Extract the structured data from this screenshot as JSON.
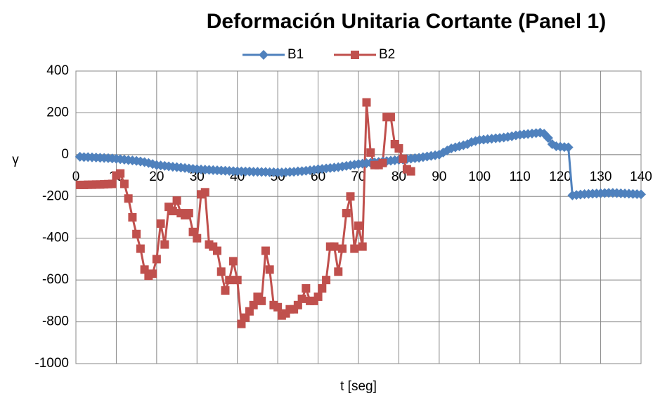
{
  "chart_data": {
    "type": "line",
    "title": "Deformación Unitaria Cortante (Panel 1)",
    "x_label": "t [seg]",
    "y_label": "γ",
    "x": [
      1,
      2,
      3,
      4,
      5,
      6,
      7,
      8,
      9,
      10,
      11,
      12,
      13,
      14,
      15,
      16,
      17,
      18,
      19,
      20,
      21,
      22,
      23,
      24,
      25,
      26,
      27,
      28,
      29,
      30,
      31,
      32,
      33,
      34,
      35,
      36,
      37,
      38,
      39,
      40,
      41,
      42,
      43,
      44,
      45,
      46,
      47,
      48,
      49,
      50,
      51,
      52,
      53,
      54,
      55,
      56,
      57,
      58,
      59,
      60,
      61,
      62,
      63,
      64,
      65,
      66,
      67,
      68,
      69,
      70,
      71,
      72,
      73,
      74,
      75,
      76,
      77,
      78,
      79,
      80,
      81,
      82,
      83,
      84,
      85,
      86,
      87,
      88,
      89,
      90,
      91,
      92,
      93,
      94,
      95,
      96,
      97,
      98,
      99,
      100,
      101,
      102,
      103,
      104,
      105,
      106,
      107,
      108,
      109,
      110,
      111,
      112,
      113,
      114,
      115,
      116,
      117,
      118,
      119,
      120,
      121,
      122,
      123,
      124,
      125,
      126,
      127,
      128,
      129,
      130,
      131,
      132,
      133,
      134,
      135,
      136,
      137,
      138,
      139,
      140
    ],
    "series": [
      {
        "name": "B1",
        "color": "#4f81bd",
        "marker": "diamond",
        "values": [
          -10,
          -12,
          -12,
          -13,
          -14,
          -15,
          -16,
          -17,
          -18,
          -20,
          -22,
          -24,
          -26,
          -28,
          -30,
          -33,
          -36,
          -40,
          -45,
          -50,
          -52,
          -54,
          -56,
          -58,
          -60,
          -62,
          -64,
          -66,
          -68,
          -70,
          -71,
          -72,
          -73,
          -74,
          -75,
          -76,
          -77,
          -78,
          -79,
          -80,
          -80,
          -81,
          -81,
          -82,
          -82,
          -83,
          -83,
          -84,
          -84,
          -85,
          -85,
          -84,
          -83,
          -82,
          -80,
          -79,
          -77,
          -75,
          -73,
          -70,
          -68,
          -66,
          -64,
          -62,
          -60,
          -57,
          -54,
          -51,
          -48,
          -45,
          -43,
          -41,
          -39,
          -37,
          -35,
          -33,
          -31,
          -29,
          -27,
          -25,
          -23,
          -21,
          -19,
          -17,
          -15,
          -12,
          -9,
          -6,
          -3,
          0,
          10,
          20,
          30,
          35,
          40,
          45,
          50,
          60,
          65,
          70,
          72,
          74,
          76,
          78,
          80,
          82,
          85,
          88,
          92,
          95,
          97,
          99,
          101,
          103,
          105,
          100,
          80,
          50,
          40,
          38,
          36,
          35,
          -195,
          -193,
          -191,
          -189,
          -188,
          -187,
          -186,
          -185,
          -184,
          -183,
          -183,
          -184,
          -185,
          -186,
          -187,
          -188,
          -189,
          -190
        ]
      },
      {
        "name": "B2",
        "color": "#c0504d",
        "marker": "square",
        "values": [
          -145,
          -145,
          -144,
          -144,
          -143,
          -143,
          -142,
          -141,
          -140,
          -100,
          -90,
          -140,
          -210,
          -300,
          -380,
          -450,
          -550,
          -580,
          -570,
          -500,
          -330,
          -430,
          -250,
          -270,
          -220,
          -280,
          -290,
          -280,
          -370,
          -400,
          -190,
          -180,
          -430,
          -440,
          -460,
          -560,
          -650,
          -600,
          -510,
          -600,
          -810,
          -780,
          -750,
          -720,
          -680,
          -700,
          -460,
          -550,
          -720,
          -730,
          -770,
          -760,
          -740,
          -740,
          -720,
          -690,
          -640,
          -700,
          -700,
          -680,
          -640,
          -600,
          -440,
          -440,
          -560,
          -450,
          -280,
          -200,
          -450,
          -340,
          -440,
          250,
          10,
          -50,
          -50,
          -40,
          180,
          180,
          50,
          30,
          -20,
          -70,
          -80,
          null,
          null,
          null,
          null,
          null,
          null,
          null,
          null,
          null,
          null,
          null,
          null,
          null,
          null,
          null,
          null,
          null,
          null,
          null,
          null,
          null,
          null,
          null,
          null,
          null,
          null,
          null,
          null,
          null,
          null,
          null,
          null,
          null,
          null,
          null,
          null,
          null,
          null,
          null,
          null,
          null,
          null,
          null,
          null,
          null,
          null,
          null,
          null,
          null,
          null,
          null,
          null,
          null,
          null,
          null,
          null,
          null
        ]
      }
    ],
    "xlim": [
      0,
      140
    ],
    "xticks": [
      0,
      10,
      20,
      30,
      40,
      50,
      60,
      70,
      80,
      90,
      100,
      110,
      120,
      130,
      140
    ],
    "ylim": [
      -1000,
      400
    ],
    "yticks": [
      -1000,
      -800,
      -600,
      -400,
      -200,
      0,
      200,
      400
    ],
    "grid": true,
    "legend": "top"
  }
}
